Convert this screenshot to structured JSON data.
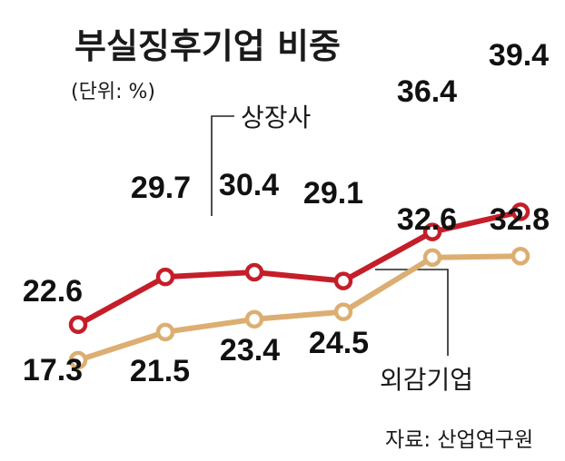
{
  "colors": {
    "listed": "#c41e2a",
    "external_audit": "#dcae72",
    "text": "#111111"
  },
  "chart_data": {
    "type": "line",
    "title": "부실징후기업 비중",
    "unit": "(단위: %)",
    "source": "자료: 산업연구원",
    "x": [
      "1",
      "2",
      "3",
      "4",
      "5",
      "6"
    ],
    "ylim": [
      15,
      41
    ],
    "grid": false,
    "legend": "inline labels",
    "series": [
      {
        "name": "상장사",
        "values": [
          22.6,
          29.7,
          30.4,
          29.1,
          36.4,
          39.4
        ],
        "labels": [
          "22.6",
          "29.7",
          "30.4",
          "29.1",
          "36.4",
          "39.4"
        ]
      },
      {
        "name": "외감기업",
        "values": [
          17.3,
          21.5,
          23.4,
          24.5,
          32.6,
          32.8
        ],
        "labels": [
          "17.3",
          "21.5",
          "23.4",
          "24.5",
          "32.6",
          "32.8"
        ]
      }
    ]
  }
}
